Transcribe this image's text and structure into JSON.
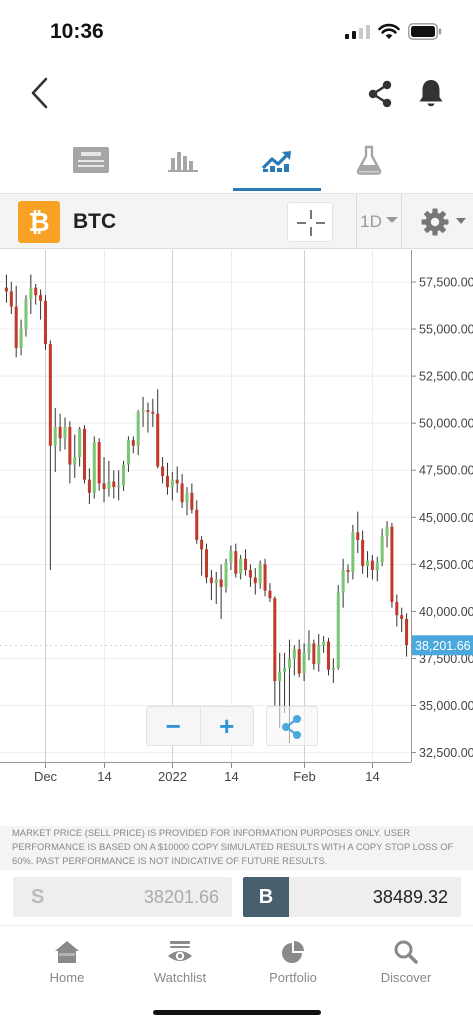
{
  "status_bar": {
    "time": "10:36"
  },
  "tabs": [
    {
      "name": "news",
      "icon": "news-icon",
      "active": false
    },
    {
      "name": "stats",
      "icon": "bar-stats-icon",
      "active": false
    },
    {
      "name": "chart",
      "icon": "trend-chart-icon",
      "active": true
    },
    {
      "name": "research",
      "icon": "flask-icon",
      "active": false
    }
  ],
  "instrument": {
    "logo_symbol": "₿",
    "name": "BTC",
    "timeframe": "1D"
  },
  "colors": {
    "up": "#7cc576",
    "down": "#c0392b",
    "accent": "#2d94d5",
    "price_tag": "#4aa8dc",
    "btc_orange": "#f7a225"
  },
  "chart_data": {
    "type": "candlestick",
    "x_tick_labels": [
      "Dec",
      "14",
      "2022",
      "14",
      "Feb",
      "14"
    ],
    "y_tick_labels": [
      "57,500.00",
      "55,000.00",
      "52,500.00",
      "50,000.00",
      "47,500.00",
      "45,000.00",
      "42,500.00",
      "40,000.00",
      "37,500.00",
      "35,000.00",
      "32,500.00"
    ],
    "y_ticks": [
      57500,
      55000,
      52500,
      50000,
      47500,
      45000,
      42500,
      40000,
      37500,
      35000,
      32500
    ],
    "ylim": [
      32000,
      59200
    ],
    "last_price_label": "38,201.66",
    "last_price": 38201.66,
    "candles": [
      [
        57200,
        57900,
        56400,
        57000
      ],
      [
        57000,
        57500,
        55800,
        56200
      ],
      [
        56200,
        57300,
        53500,
        54000
      ],
      [
        54000,
        55500,
        53600,
        55000
      ],
      [
        55000,
        56800,
        54600,
        56600
      ],
      [
        56600,
        57900,
        55800,
        57200
      ],
      [
        57200,
        57400,
        56300,
        56800
      ],
      [
        56800,
        57100,
        55500,
        56500
      ],
      [
        56500,
        56800,
        53900,
        54200
      ],
      [
        54200,
        54400,
        42200,
        48800
      ],
      [
        48800,
        50800,
        47400,
        49800
      ],
      [
        49800,
        50500,
        48500,
        49200
      ],
      [
        49200,
        50300,
        48600,
        49800
      ],
      [
        49800,
        50100,
        46800,
        47800
      ],
      [
        47800,
        49400,
        47100,
        48200
      ],
      [
        48200,
        49800,
        47700,
        49700
      ],
      [
        49700,
        49900,
        46800,
        47000
      ],
      [
        47000,
        47600,
        45700,
        46300
      ],
      [
        46300,
        49300,
        46000,
        49000
      ],
      [
        49000,
        49200,
        46400,
        46800
      ],
      [
        46800,
        48200,
        45800,
        46500
      ],
      [
        46500,
        48000,
        46100,
        46900
      ],
      [
        46900,
        47500,
        46000,
        46600
      ],
      [
        46600,
        47500,
        45900,
        46700
      ],
      [
        46700,
        48000,
        46400,
        47800
      ],
      [
        47800,
        49300,
        47400,
        49100
      ],
      [
        49100,
        49300,
        48400,
        48800
      ],
      [
        48800,
        50700,
        48300,
        50600
      ],
      [
        50600,
        51400,
        49800,
        50700
      ],
      [
        50700,
        51100,
        49500,
        50600
      ],
      [
        50600,
        51300,
        49800,
        50500
      ],
      [
        50500,
        51800,
        47600,
        47700
      ],
      [
        47700,
        48200,
        46800,
        47200
      ],
      [
        47200,
        47900,
        46200,
        46600
      ],
      [
        46600,
        47400,
        45900,
        47000
      ],
      [
        47000,
        47700,
        46300,
        46800
      ],
      [
        46800,
        47300,
        45500,
        45800
      ],
      [
        45800,
        46600,
        45100,
        46300
      ],
      [
        46300,
        46800,
        45200,
        45400
      ],
      [
        45400,
        45900,
        43600,
        43800
      ],
      [
        43800,
        44000,
        41900,
        43300
      ],
      [
        43300,
        43600,
        41500,
        41800
      ],
      [
        41800,
        42200,
        40600,
        41500
      ],
      [
        41500,
        42100,
        40400,
        41700
      ],
      [
        41700,
        42500,
        39600,
        41300
      ],
      [
        41300,
        42800,
        41000,
        42600
      ],
      [
        42600,
        43500,
        42200,
        43200
      ],
      [
        43200,
        43600,
        41800,
        42000
      ],
      [
        42000,
        43000,
        41700,
        42800
      ],
      [
        42800,
        43300,
        41900,
        42200
      ],
      [
        42200,
        42500,
        41300,
        41800
      ],
      [
        41800,
        42300,
        40900,
        41500
      ],
      [
        41500,
        42700,
        41200,
        42500
      ],
      [
        42500,
        42800,
        40800,
        41100
      ],
      [
        41100,
        41500,
        40500,
        40700
      ],
      [
        40700,
        40800,
        35000,
        36300
      ],
      [
        36300,
        37800,
        33800,
        36800
      ],
      [
        36800,
        37800,
        34600,
        37000
      ],
      [
        37000,
        38500,
        33000,
        37500
      ],
      [
        37500,
        38200,
        36600,
        38000
      ],
      [
        38000,
        38500,
        36500,
        36700
      ],
      [
        36700,
        38300,
        36300,
        37800
      ],
      [
        37800,
        39000,
        37400,
        38300
      ],
      [
        38300,
        38500,
        36900,
        37200
      ],
      [
        37200,
        38800,
        36800,
        38200
      ],
      [
        38200,
        38700,
        37800,
        38400
      ],
      [
        38400,
        38600,
        36600,
        36900
      ],
      [
        36900,
        37500,
        36200,
        37000
      ],
      [
        37000,
        41400,
        36900,
        41000
      ],
      [
        41000,
        42800,
        40200,
        42200
      ],
      [
        42200,
        42500,
        41500,
        42100
      ],
      [
        42100,
        44600,
        41700,
        44200
      ],
      [
        44200,
        45300,
        43100,
        43800
      ],
      [
        43800,
        44300,
        42000,
        42400
      ],
      [
        42400,
        43200,
        41800,
        42700
      ],
      [
        42700,
        43000,
        41700,
        42200
      ],
      [
        42200,
        42900,
        41600,
        42600
      ],
      [
        42600,
        44400,
        42400,
        44000
      ],
      [
        44000,
        44800,
        43400,
        44500
      ],
      [
        44500,
        44700,
        40200,
        40500
      ],
      [
        40500,
        40900,
        39200,
        39800
      ],
      [
        39800,
        40200,
        38900,
        39600
      ],
      [
        39600,
        39900,
        37600,
        38201.66
      ]
    ]
  },
  "disclaimer": "MARKET PRICE (SELL PRICE) IS PROVIDED FOR INFORMATION PURPOSES ONLY. USER PERFORMANCE IS BASED ON A $10000 COPY SIMULATED RESULTS WITH A COPY STOP LOSS OF 60%. PAST PERFORMANCE IS NOT INDICATIVE OF FUTURE RESULTS.",
  "prices": {
    "sell_label": "S",
    "sell_value": "38201.66",
    "buy_label": "B",
    "buy_value": "38489.32"
  },
  "zoom": {
    "minus": "−",
    "plus": "+"
  },
  "bottom_nav": [
    {
      "label": "Home",
      "icon": "home-icon"
    },
    {
      "label": "Watchlist",
      "icon": "watchlist-eye-icon"
    },
    {
      "label": "Portfolio",
      "icon": "portfolio-pie-icon"
    },
    {
      "label": "Discover",
      "icon": "discover-search-icon"
    }
  ]
}
